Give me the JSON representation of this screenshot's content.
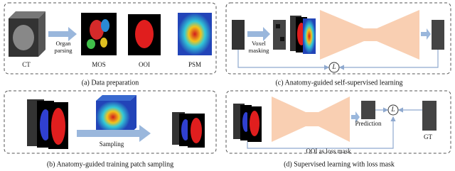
{
  "panel_a": {
    "caption": "(a) Data preparation",
    "input_label": "CT",
    "step_label": "Organ parsing",
    "outputs": [
      "MOS",
      "OOI",
      "PSM"
    ]
  },
  "panel_b": {
    "caption": "(b) Anatomy-guided training patch sampling",
    "step_label": "Sampling"
  },
  "panel_c": {
    "caption": "(c) Anatomy-guided self-supervised learning",
    "step_label": "Voxel masking",
    "loss_symbol": "L"
  },
  "panel_d": {
    "caption": "(d) Supervised learning with loss mask",
    "prediction_label": "Prediction",
    "target_label": "GT",
    "mask_label": "OOI as loss mask",
    "loss_symbol": "L"
  }
}
